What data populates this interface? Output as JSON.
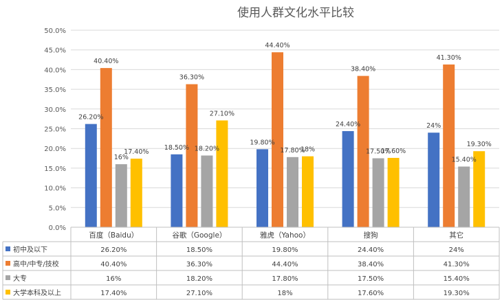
{
  "chart_data": {
    "type": "bar",
    "title": "使用人群文化水平比较",
    "categories": [
      "百度（Baidu）",
      "谷歌（Google）",
      "雅虎（Yahoo）",
      "搜狗",
      "其它"
    ],
    "ylim": [
      0,
      50
    ],
    "yticks": [
      "0.0%",
      "5.0%",
      "10.0%",
      "15.0%",
      "20.0%",
      "25.0%",
      "30.0%",
      "35.0%",
      "40.0%",
      "45.0%",
      "50.0%"
    ],
    "grid": true,
    "legend": "data-table",
    "series": [
      {
        "name": "初中及以下",
        "color": "#4472C4",
        "values": [
          26.2,
          18.5,
          19.8,
          24.4,
          24
        ],
        "labels": [
          "26.20%",
          "18.50%",
          "19.80%",
          "24.40%",
          "24%"
        ]
      },
      {
        "name": "高中/中专/技校",
        "color": "#ED7D31",
        "values": [
          40.4,
          36.3,
          44.4,
          38.4,
          41.3
        ],
        "labels": [
          "40.40%",
          "36.30%",
          "44.40%",
          "38.40%",
          "41.30%"
        ]
      },
      {
        "name": "大专",
        "color": "#A5A5A5",
        "values": [
          16,
          18.2,
          17.8,
          17.5,
          15.4
        ],
        "labels": [
          "16%",
          "18.20%",
          "17.80%",
          "17.50%",
          "15.40%"
        ]
      },
      {
        "name": "大学本科及以上",
        "color": "#FFC000",
        "values": [
          17.4,
          27.1,
          18,
          17.6,
          19.3
        ],
        "labels": [
          "17.40%",
          "27.10%",
          "18%",
          "17.60%",
          "19.30%"
        ]
      }
    ]
  }
}
